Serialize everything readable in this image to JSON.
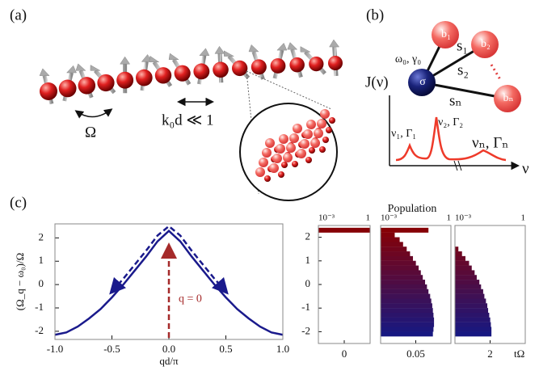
{
  "panel_a": {
    "label": "(a)",
    "coupling": "Ω",
    "condition": "k₀d ≪ 1"
  },
  "panel_b": {
    "label": "(b)",
    "bath_1": "b₁",
    "bath_2": "b₂",
    "bath_n": "bₙ",
    "coupling_1": "s₁",
    "coupling_2": "s₂",
    "coupling_n": "sₙ",
    "emitter_params": "ω₀, γ₀",
    "emitter": "σ",
    "spectral_label": "J(ν)",
    "peak_1": "ν₁, Γ₁",
    "peak_2": "ν₂, Γ₂",
    "peak_n": "νₙ, Γₙ",
    "frequency_axis": "ν"
  },
  "panel_c": {
    "label": "(c)",
    "population_title": "Population"
  },
  "chart_data": [
    {
      "type": "line",
      "xlabel": "qd/π",
      "ylabel": "(Ω_q − ω₀)/Ω",
      "annotation": "q = 0",
      "x": [
        -1.0,
        -0.9,
        -0.8,
        -0.7,
        -0.6,
        -0.5,
        -0.4,
        -0.3,
        -0.2,
        -0.1,
        0.0,
        0.1,
        0.2,
        0.3,
        0.4,
        0.5,
        0.6,
        0.7,
        0.8,
        0.9,
        1.0
      ],
      "series": [
        {
          "color": "#1a1a8c",
          "dashed": false,
          "values": [
            -2.15,
            -2.05,
            -1.8,
            -1.45,
            -1.05,
            -0.55,
            0.0,
            0.6,
            1.2,
            1.85,
            2.3,
            1.85,
            1.2,
            0.6,
            0.0,
            -0.55,
            -1.05,
            -1.45,
            -1.8,
            -2.05,
            -2.15
          ]
        },
        {
          "color": "#1a1a8c",
          "dashed": true,
          "values": [
            null,
            null,
            null,
            null,
            null,
            -0.3,
            0.25,
            0.85,
            1.45,
            2.1,
            2.5,
            2.1,
            1.45,
            0.85,
            0.25,
            -0.3,
            null,
            null,
            null,
            null,
            null
          ]
        }
      ],
      "xlim": [
        -1,
        1
      ],
      "xticks": [
        {
          "value": -1,
          "label": "-1.0"
        },
        {
          "value": -0.5,
          "label": "-0.5"
        },
        {
          "value": 0,
          "label": "0.0"
        },
        {
          "value": 0.5,
          "label": "0.5"
        },
        {
          "value": 1,
          "label": "1.0"
        }
      ],
      "ylim": [
        -2.35,
        2.6
      ],
      "yticks": [
        -2,
        -1,
        0,
        1,
        2
      ]
    },
    {
      "type": "barh",
      "xscale": "log",
      "time_label": "0",
      "colormap": [
        "#0d1a8c",
        "#8b0000"
      ],
      "y": [
        2.3
      ],
      "values": [
        1
      ],
      "xlim": [
        0.001,
        1
      ],
      "xticks": [
        {
          "value": 0.001,
          "label": "10⁻³"
        },
        1
      ],
      "ylim": [
        -2.5,
        2.5
      ],
      "yticks": [
        -2,
        -1,
        0,
        1,
        2
      ]
    },
    {
      "type": "barh",
      "xscale": "log",
      "time_label": "0.05",
      "colormap": [
        "#0d1a8c",
        "#8b0000"
      ],
      "y": [
        2.3,
        2.1,
        1.9,
        1.7,
        1.5,
        1.3,
        1.1,
        0.9,
        0.7,
        0.5,
        0.3,
        0.1,
        -0.1,
        -0.3,
        -0.5,
        -0.7,
        -0.9,
        -1.1,
        -1.3,
        -1.5,
        -1.7,
        -1.9,
        -2.1
      ],
      "values": [
        0.11,
        0.004,
        0.0065,
        0.0091,
        0.013,
        0.018,
        0.024,
        0.032,
        0.042,
        0.052,
        0.063,
        0.079,
        0.095,
        0.11,
        0.13,
        0.145,
        0.16,
        0.17,
        0.18,
        0.19,
        0.19,
        0.18,
        0.17
      ],
      "xlim": [
        0.001,
        1
      ],
      "xticks": [
        {
          "value": 0.001,
          "label": "10⁻³"
        },
        1
      ],
      "ylim": [
        -2.5,
        2.5
      ]
    },
    {
      "type": "barh",
      "xscale": "log",
      "time_label": "2",
      "xlabel": "tΩ",
      "colormap": [
        "#0d1a8c",
        "#8b0000"
      ],
      "y": [
        1.5,
        1.3,
        1.1,
        0.9,
        0.7,
        0.5,
        0.3,
        0.1,
        -0.1,
        -0.3,
        -0.5,
        -0.7,
        -0.9,
        -1.1,
        -1.3,
        -1.5,
        -1.7,
        -1.9,
        -2.1
      ],
      "values": [
        0.0014,
        0.002,
        0.0028,
        0.004,
        0.0052,
        0.0069,
        0.0085,
        0.011,
        0.013,
        0.016,
        0.018,
        0.021,
        0.024,
        0.026,
        0.029,
        0.032,
        0.034,
        0.036,
        0.036
      ],
      "xlim": [
        0.001,
        1
      ],
      "xticks": [
        {
          "value": 0.001,
          "label": "10⁻³"
        },
        1
      ],
      "ylim": [
        -2.5,
        2.5
      ]
    }
  ]
}
